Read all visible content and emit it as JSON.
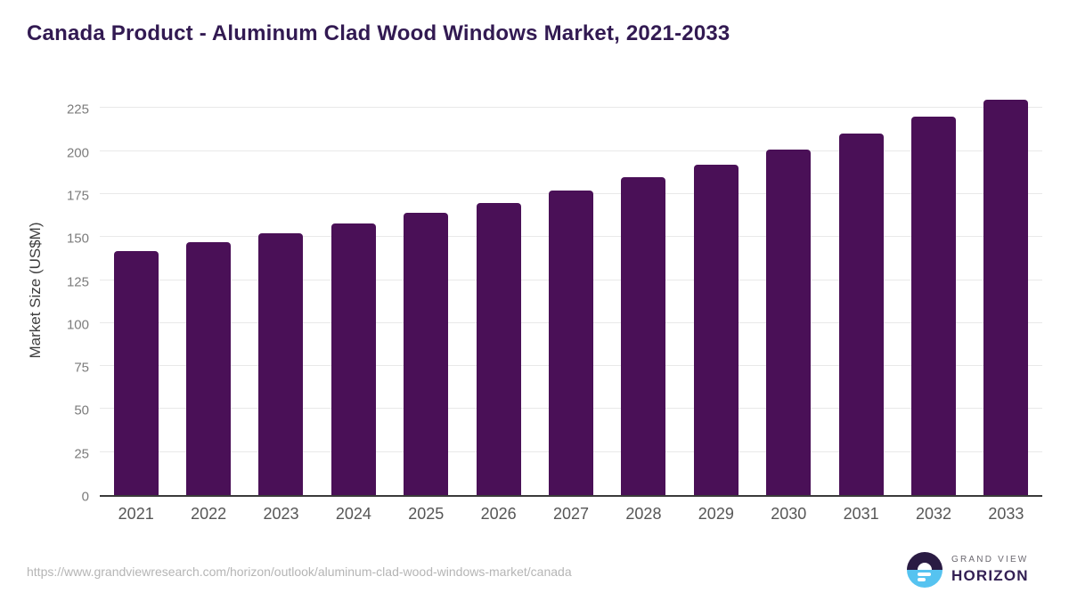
{
  "title": "Canada Product - Aluminum Clad Wood Windows Market, 2021-2033",
  "chart_data": {
    "type": "bar",
    "categories": [
      "2021",
      "2022",
      "2023",
      "2024",
      "2025",
      "2026",
      "2027",
      "2028",
      "2029",
      "2030",
      "2031",
      "2032",
      "2033"
    ],
    "values": [
      142,
      147,
      152,
      158,
      164,
      170,
      177,
      185,
      192,
      201,
      210,
      220,
      230
    ],
    "title": "Canada Product - Aluminum Clad Wood Windows Market, 2021-2033",
    "xlabel": "",
    "ylabel": "Market Size (US$M)",
    "ylim": [
      0,
      235
    ],
    "yticks": [
      0,
      25,
      50,
      75,
      100,
      125,
      150,
      175,
      200,
      225
    ],
    "grid": "horizontal",
    "legend": "none",
    "bar_color": "#4a1057"
  },
  "colors": {
    "title_text": "#321a52",
    "bar": "#4a1057",
    "gridline": "#e9e9e9",
    "axis_line": "#3a3a3a",
    "y_tick_text": "#7c7c7c",
    "x_tick_text": "#565656",
    "url_text": "#b5b5b5",
    "logo_dark": "#2a1b43",
    "logo_blue": "#56c3f0",
    "logo_horizon_text": "#332054",
    "logo_grandview_text": "#6b6870"
  },
  "footer": {
    "url": "https://www.grandviewresearch.com/horizon/outlook/aluminum-clad-wood-windows-market/canada",
    "logo": {
      "line1": "GRAND VIEW",
      "line2": "HORIZON"
    }
  }
}
